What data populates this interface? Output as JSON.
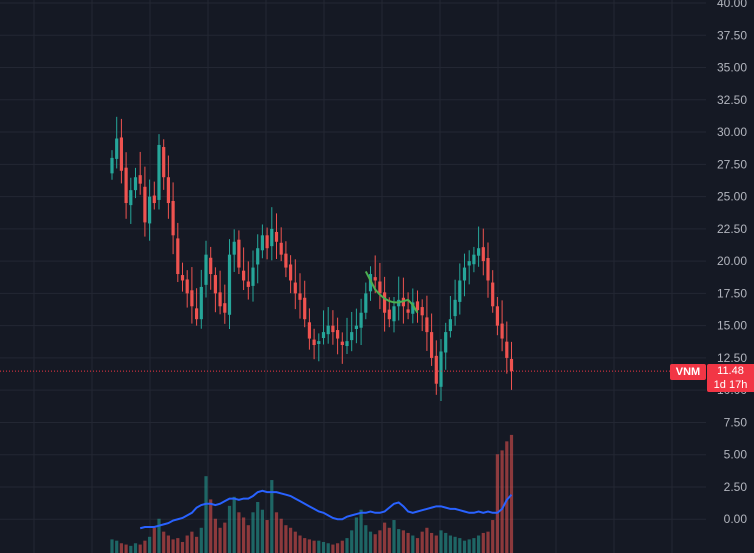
{
  "ticker": "VNM",
  "last_price": "11.48",
  "countdown": "1d 17h",
  "colors": {
    "background": "#151924",
    "grid": "#232733",
    "up": "#26a69a",
    "down": "#ef5350",
    "ma": "#4caf50",
    "volume_ma": "#2962ff",
    "price_tag": "#f23645"
  },
  "chart_data": {
    "type": "line",
    "title": "",
    "xlabel": "",
    "ylabel": "",
    "grid": true,
    "price_axis": {
      "ylim": [
        -2.5,
        40
      ],
      "ticks": [
        "40.00",
        "37.50",
        "35.00",
        "32.50",
        "30.00",
        "27.50",
        "25.00",
        "22.50",
        "20.00",
        "17.50",
        "15.00",
        "12.50",
        "10.00",
        "7.50",
        "5.00",
        "2.50",
        "0.00"
      ],
      "tick_values": [
        40,
        37.5,
        35,
        32.5,
        30,
        27.5,
        25,
        22.5,
        20,
        17.5,
        15,
        12.5,
        10,
        7.5,
        5,
        2.5,
        0
      ]
    },
    "series": [
      {
        "role": "price_close",
        "values": [
          28.0,
          29.5,
          27.0,
          24.5,
          25.5,
          26.5,
          26.0,
          23.0,
          25.0,
          24.5,
          29.0,
          26.5,
          24.5,
          22.0,
          19.0,
          18.5,
          17.5,
          16.5,
          15.5,
          18.0,
          20.5,
          19.0,
          17.5,
          16.5,
          16.0,
          20.5,
          21.5,
          19.5,
          18.5,
          18.0,
          19.5,
          21.0,
          22.0,
          21.0,
          22.5,
          21.5,
          20.5,
          19.5,
          18.5,
          17.5,
          17.0,
          15.5,
          14.0,
          13.5,
          13.8,
          14.5,
          15.0,
          14.5,
          14.0,
          13.5,
          13.8,
          14.5,
          15.0,
          16.0,
          17.5,
          19.0,
          18.5,
          17.5,
          16.0,
          15.5,
          16.5,
          17.0,
          16.5,
          16.0,
          16.8,
          16.2,
          15.8,
          14.5,
          12.5,
          10.5,
          13.0,
          14.5,
          15.5,
          17.0,
          18.5,
          19.5,
          20.0,
          20.5,
          21.0,
          20.0,
          18.5,
          16.5,
          15.0,
          14.0,
          12.5,
          11.48
        ]
      },
      {
        "role": "price_ma",
        "start_index": 54,
        "values": [
          19.2,
          18.5,
          17.8,
          17.4,
          17.1,
          16.9,
          16.8,
          16.8,
          16.9,
          17.0,
          16.6,
          16.0
        ]
      },
      {
        "role": "volume",
        "values": [
          0.9,
          0.8,
          0.6,
          0.5,
          0.4,
          0.6,
          0.5,
          0.8,
          1.1,
          1.8,
          2.5,
          1.5,
          1.2,
          0.9,
          1.0,
          0.7,
          1.2,
          1.5,
          1.1,
          1.8,
          5.8,
          4.0,
          2.5,
          1.8,
          2.2,
          3.5,
          4.2,
          3.0,
          2.6,
          2.0,
          3.0,
          3.8,
          3.2,
          2.4,
          5.5,
          3.0,
          2.5,
          2.0,
          1.8,
          1.5,
          1.2,
          1.0,
          0.9,
          0.8,
          0.8,
          0.7,
          0.6,
          0.5,
          0.6,
          0.8,
          1.0,
          1.6,
          2.6,
          3.2,
          2.0,
          1.5,
          1.3,
          1.6,
          2.2,
          1.8,
          2.4,
          1.7,
          1.6,
          1.4,
          1.2,
          1.0,
          1.5,
          1.8,
          1.4,
          1.2,
          1.6,
          1.4,
          1.2,
          1.1,
          1.0,
          0.8,
          0.9,
          1.0,
          1.2,
          1.4,
          1.5,
          2.4,
          7.5,
          7.8,
          8.5,
          9.0
        ]
      },
      {
        "role": "volume_ma",
        "start_index": 6,
        "values": [
          -0.7,
          -0.6,
          -0.6,
          -0.6,
          -0.5,
          -0.4,
          -0.3,
          -0.1,
          0.0,
          0.1,
          0.3,
          0.5,
          0.9,
          1.1,
          1.2,
          1.2,
          1.1,
          1.2,
          1.4,
          1.6,
          1.6,
          1.5,
          1.6,
          1.6,
          1.8,
          2.1,
          2.2,
          2.1,
          2.1,
          2.1,
          2.0,
          1.9,
          1.8,
          1.6,
          1.4,
          1.2,
          1.0,
          0.8,
          0.6,
          0.5,
          0.3,
          0.1,
          0.0,
          0.0,
          0.2,
          0.3,
          0.4,
          0.5,
          0.5,
          0.6,
          0.5,
          0.5,
          0.6,
          0.9,
          1.2,
          1.3,
          1.0,
          0.6,
          0.5,
          0.6,
          0.7,
          0.8,
          0.9,
          1.0,
          1.0,
          0.9,
          0.8,
          0.8,
          0.7,
          0.6,
          0.5,
          0.5,
          0.6,
          0.5,
          0.6,
          0.5,
          0.5,
          0.8,
          1.5,
          1.9
        ]
      }
    ]
  }
}
